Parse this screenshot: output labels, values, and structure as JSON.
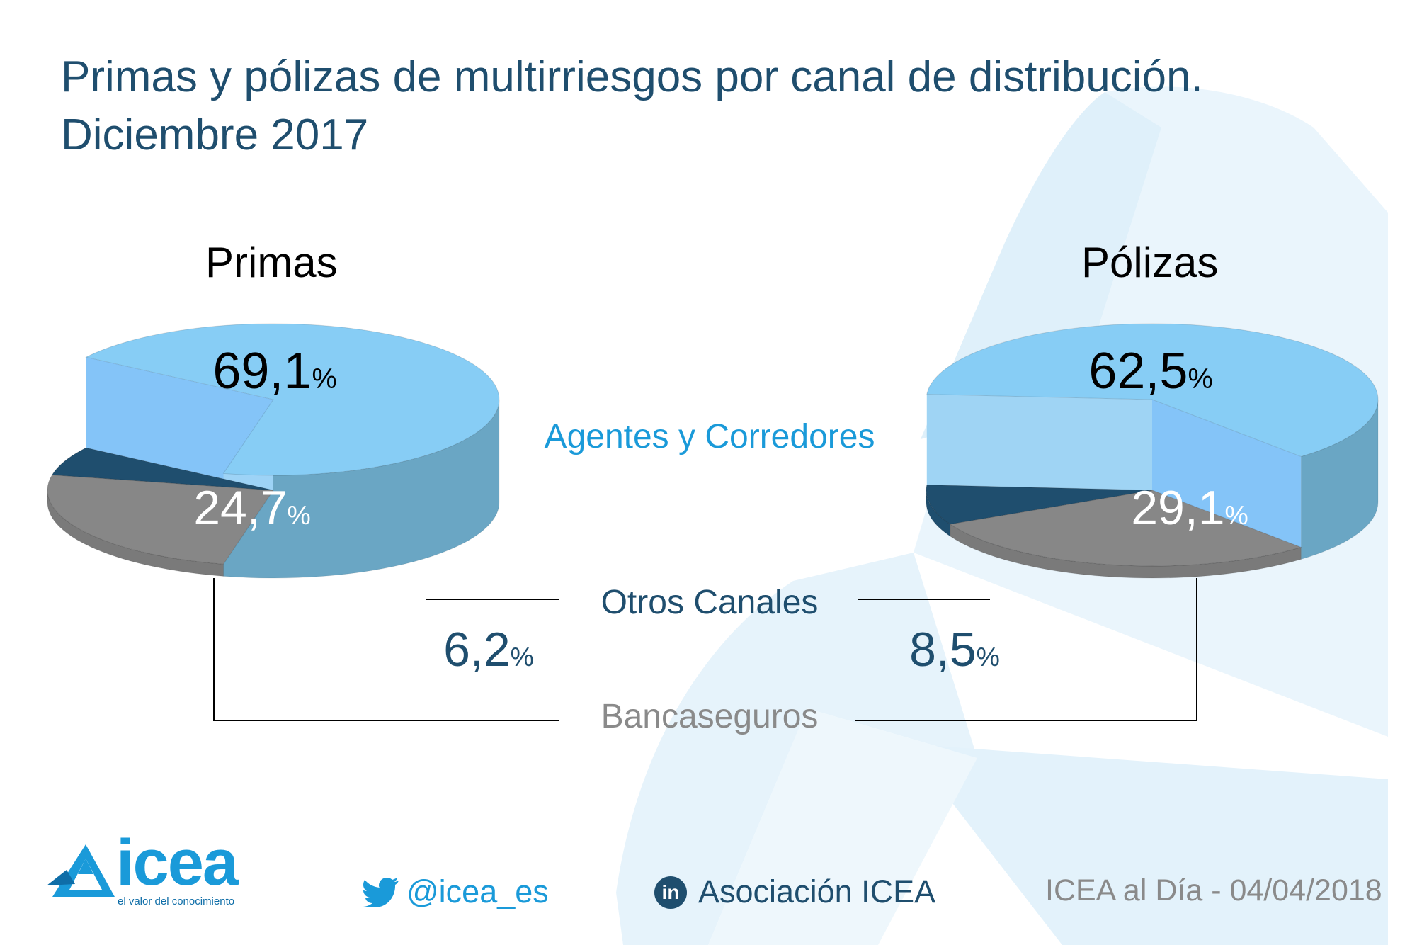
{
  "title": {
    "line1": "Primas y pólizas de multirriesgos por canal de distribución.",
    "line2": "Diciembre 2017"
  },
  "chart_data": [
    {
      "type": "pie",
      "title": "Primas",
      "categories": [
        "Agentes y Corredores",
        "Bancaseguros",
        "Otros Canales"
      ],
      "values": [
        69.1,
        24.7,
        6.2
      ],
      "value_labels": [
        "69,1",
        "24,7",
        "6,2"
      ],
      "unit": "%"
    },
    {
      "type": "pie",
      "title": "Pólizas",
      "categories": [
        "Agentes y Corredores",
        "Bancaseguros",
        "Otros Canales"
      ],
      "values": [
        62.5,
        29.1,
        8.5
      ],
      "value_labels": [
        "62,5",
        "29,1",
        "8,5"
      ],
      "unit": "%"
    }
  ],
  "legend": {
    "agentes": "Agentes y Corredores",
    "otros": "Otros Canales",
    "banca": "Bancaseguros"
  },
  "colors": {
    "agentes_top": "#87cdf5",
    "agentes_side": "#6aa6c4",
    "banca_top": "#878787",
    "banca_side": "#7a7a7a",
    "otros": "#1f4e6e",
    "agentes_label": "#1a9ad9",
    "otros_label": "#1f4e6e",
    "banca_label": "#8a8a8a",
    "title": "#1f4e6e"
  },
  "footer": {
    "logo_text": "icea",
    "logo_tagline": "el valor del conocimiento",
    "twitter": "@icea_es",
    "linkedin": "Asociación ICEA",
    "linkedin_badge": "in",
    "date": "ICEA al Día - 04/04/2018"
  },
  "icons": {
    "twitter": "twitter-bird-icon",
    "linkedin": "linkedin-icon",
    "logo": "icea-triangle-logo-icon"
  }
}
